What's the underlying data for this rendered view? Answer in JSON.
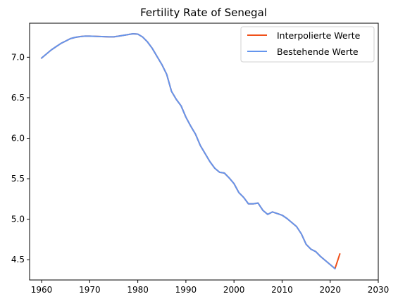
{
  "chart_data": {
    "type": "line",
    "title": "Fertility Rate of Senegal",
    "xlabel": "",
    "ylabel": "",
    "xlim": [
      1957.5,
      2030
    ],
    "ylim": [
      4.25,
      7.42
    ],
    "xticks": [
      1960,
      1970,
      1980,
      1990,
      2000,
      2010,
      2020,
      2030
    ],
    "yticks": [
      4.5,
      5.0,
      5.5,
      6.0,
      6.5,
      7.0
    ],
    "ytick_labels": [
      "4.5",
      "5.0",
      "5.5",
      "6.0",
      "6.5",
      "7.0"
    ],
    "grid": false,
    "legend_position": "top-right",
    "series": [
      {
        "name": "Interpolierte Werte",
        "color": "#f0501a",
        "x": [
          1960,
          1961,
          1962,
          1963,
          1964,
          1965,
          1966,
          1967,
          1968,
          1969,
          1970,
          1971,
          1972,
          1973,
          1974,
          1975,
          1976,
          1977,
          1978,
          1979,
          1980,
          1981,
          1982,
          1983,
          1984,
          1985,
          1986,
          1987,
          1988,
          1989,
          1990,
          1991,
          1992,
          1993,
          1994,
          1995,
          1996,
          1997,
          1998,
          1999,
          2000,
          2001,
          2002,
          2003,
          2004,
          2005,
          2006,
          2007,
          2008,
          2009,
          2010,
          2011,
          2012,
          2013,
          2014,
          2015,
          2016,
          2017,
          2018,
          2019,
          2020,
          2021,
          2022
        ],
        "y": [
          6.99,
          7.04,
          7.09,
          7.13,
          7.17,
          7.2,
          7.23,
          7.245,
          7.255,
          7.26,
          7.26,
          7.258,
          7.256,
          7.254,
          7.252,
          7.252,
          7.26,
          7.27,
          7.28,
          7.29,
          7.285,
          7.25,
          7.19,
          7.11,
          7.01,
          6.91,
          6.79,
          6.58,
          6.48,
          6.4,
          6.26,
          6.15,
          6.05,
          5.91,
          5.81,
          5.71,
          5.63,
          5.58,
          5.57,
          5.51,
          5.44,
          5.33,
          5.27,
          5.19,
          5.19,
          5.2,
          5.11,
          5.06,
          5.09,
          5.07,
          5.05,
          5.01,
          4.96,
          4.91,
          4.82,
          4.69,
          4.63,
          4.6,
          4.54,
          4.49,
          4.44,
          4.39,
          4.57
        ]
      },
      {
        "name": "Bestehende Werte",
        "color": "#6495ed",
        "x": [
          1960,
          1961,
          1962,
          1963,
          1964,
          1965,
          1966,
          1967,
          1968,
          1969,
          1970,
          1971,
          1972,
          1973,
          1974,
          1975,
          1976,
          1977,
          1978,
          1979,
          1980,
          1981,
          1982,
          1983,
          1984,
          1985,
          1986,
          1987,
          1988,
          1989,
          1990,
          1991,
          1992,
          1993,
          1994,
          1995,
          1996,
          1997,
          1998,
          1999,
          2000,
          2001,
          2002,
          2003,
          2004,
          2005,
          2006,
          2007,
          2008,
          2009,
          2010,
          2011,
          2012,
          2013,
          2014,
          2015,
          2016,
          2017,
          2018,
          2019,
          2020,
          2021
        ],
        "y": [
          6.99,
          7.04,
          7.09,
          7.13,
          7.17,
          7.2,
          7.23,
          7.245,
          7.255,
          7.26,
          7.26,
          7.258,
          7.256,
          7.254,
          7.252,
          7.252,
          7.26,
          7.27,
          7.28,
          7.29,
          7.285,
          7.25,
          7.19,
          7.11,
          7.01,
          6.91,
          6.79,
          6.58,
          6.48,
          6.4,
          6.26,
          6.15,
          6.05,
          5.91,
          5.81,
          5.71,
          5.63,
          5.58,
          5.57,
          5.51,
          5.44,
          5.33,
          5.27,
          5.19,
          5.19,
          5.2,
          5.11,
          5.06,
          5.09,
          5.07,
          5.05,
          5.01,
          4.96,
          4.91,
          4.82,
          4.69,
          4.63,
          4.6,
          4.54,
          4.49,
          4.44,
          4.39
        ]
      }
    ]
  }
}
